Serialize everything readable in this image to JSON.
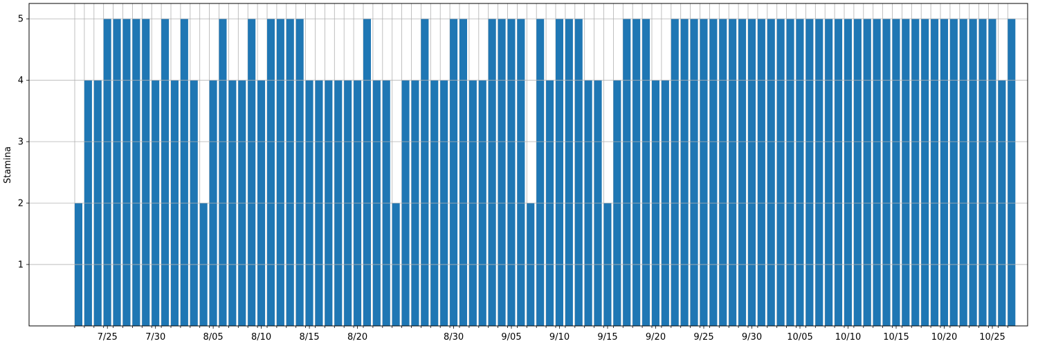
{
  "chart_data": {
    "type": "bar",
    "title": "",
    "xlabel": "",
    "ylabel": "Stamina",
    "ylim": [
      0,
      5.25
    ],
    "yticks": [
      1,
      2,
      3,
      4,
      5
    ],
    "grid": true,
    "bar_color": "#1f77b4",
    "date_range": [
      "2024-07-22",
      "2024-10-30"
    ],
    "x_tick_labels": [
      {
        "date": "2024-07-25",
        "label": "7/25"
      },
      {
        "date": "2024-07-30",
        "label": "7/30"
      },
      {
        "date": "2024-08-05",
        "label": "8/05"
      },
      {
        "date": "2024-08-10",
        "label": "8/10"
      },
      {
        "date": "2024-08-15",
        "label": "8/15"
      },
      {
        "date": "2024-08-20",
        "label": "8/20"
      },
      {
        "date": "2024-08-30",
        "label": "8/30"
      },
      {
        "date": "2024-09-05",
        "label": "9/05"
      },
      {
        "date": "2024-09-10",
        "label": "9/10"
      },
      {
        "date": "2024-09-15",
        "label": "9/15"
      },
      {
        "date": "2024-09-20",
        "label": "9/20"
      },
      {
        "date": "2024-09-25",
        "label": "9/25"
      },
      {
        "date": "2024-09-30",
        "label": "9/30"
      },
      {
        "date": "2024-10-05",
        "label": "10/05"
      },
      {
        "date": "2024-10-10",
        "label": "10/10"
      },
      {
        "date": "2024-10-15",
        "label": "10/15"
      },
      {
        "date": "2024-10-20",
        "label": "10/20"
      },
      {
        "date": "2024-10-25",
        "label": "10/25"
      }
    ],
    "series": [
      {
        "values": [
          2,
          4,
          4,
          5,
          5,
          5,
          5,
          5,
          4,
          5,
          4,
          5,
          4,
          2,
          4,
          5,
          4,
          4,
          5,
          4,
          5,
          5,
          5,
          5,
          4,
          4,
          4,
          4,
          4,
          4,
          5,
          4,
          4,
          2,
          4,
          4,
          5,
          4,
          4,
          5,
          5,
          4,
          4,
          5,
          5,
          5,
          5,
          2,
          5,
          4,
          5,
          5,
          5,
          4,
          4,
          2,
          4,
          5,
          5,
          5,
          4,
          4,
          5,
          5,
          5,
          5,
          5,
          5,
          5,
          5,
          5,
          5,
          5,
          5,
          5,
          5,
          5,
          5,
          5,
          5,
          5,
          5,
          5,
          5,
          5,
          5,
          5,
          5,
          5,
          5,
          5,
          5,
          5,
          5,
          5,
          5,
          4,
          5
        ]
      }
    ]
  }
}
